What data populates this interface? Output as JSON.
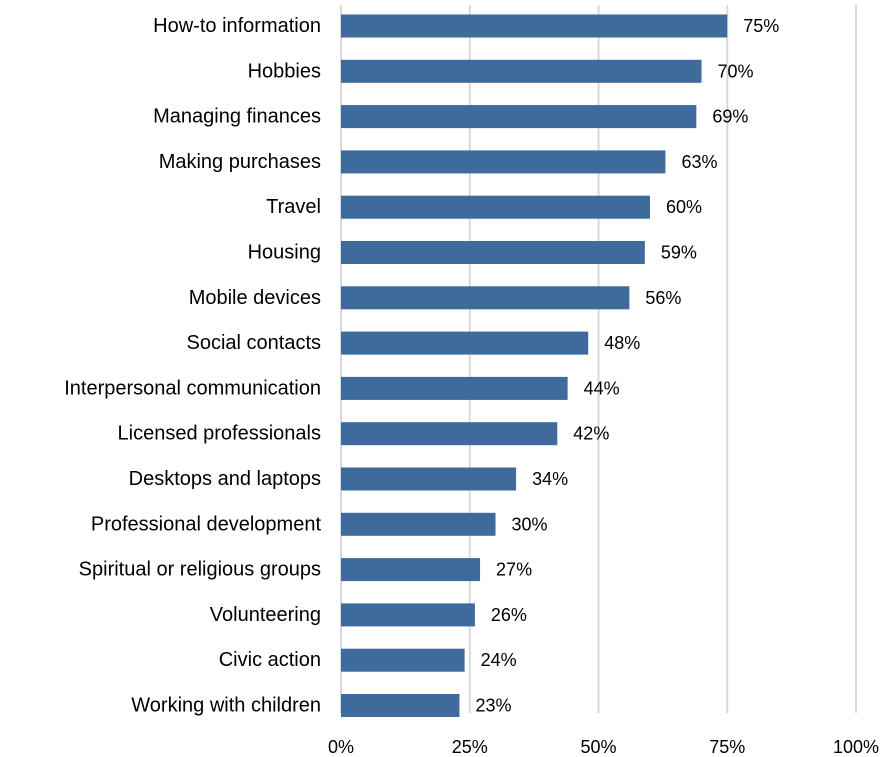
{
  "chart_data": {
    "type": "bar",
    "orientation": "horizontal",
    "categories": [
      "How-to information",
      "Hobbies",
      "Managing finances",
      "Making purchases",
      "Travel",
      "Housing",
      "Mobile devices",
      "Social contacts",
      "Interpersonal communication",
      "Licensed professionals",
      "Desktops and laptops",
      "Professional development",
      "Spiritual or religious groups",
      "Volunteering",
      "Civic action",
      "Working with children"
    ],
    "values": [
      75,
      70,
      69,
      63,
      60,
      59,
      56,
      48,
      44,
      42,
      34,
      30,
      27,
      26,
      24,
      23
    ],
    "data_labels": [
      "75%",
      "70%",
      "69%",
      "63%",
      "60%",
      "59%",
      "56%",
      "48%",
      "44%",
      "42%",
      "34%",
      "30%",
      "27%",
      "26%",
      "24%",
      "23%"
    ],
    "xticks": [
      0,
      25,
      50,
      75,
      100
    ],
    "xtick_labels": [
      "0%",
      "25%",
      "50%",
      "75%",
      "100%"
    ],
    "xlim": [
      0,
      100
    ],
    "grid": "vertical",
    "legend": "none",
    "bar_color": "#3e6a9c",
    "grid_color": "#d9d9d9"
  }
}
